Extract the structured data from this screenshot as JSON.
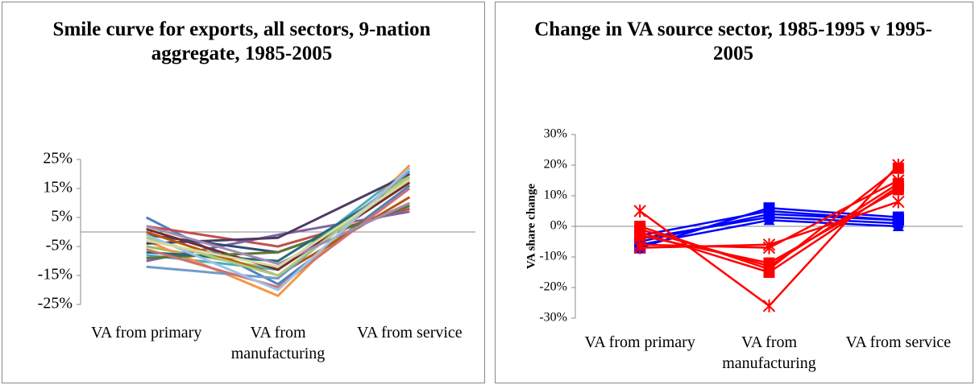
{
  "chart_data": [
    {
      "type": "line",
      "title": "Smile curve for exports, all sectors, 9-nation aggregate, 1985-2005",
      "categories": [
        "VA from primary",
        "VA from manufacturing",
        "VA from service"
      ],
      "ylim": [
        -25,
        25
      ],
      "yticks": [
        {
          "value": -25,
          "label": "-25%"
        },
        {
          "value": -15,
          "label": "-15%"
        },
        {
          "value": -5,
          "label": "-5%"
        },
        {
          "value": 5,
          "label": "5%"
        },
        {
          "value": 15,
          "label": "15%"
        },
        {
          "value": 25,
          "label": "25%"
        }
      ],
      "series": [
        {
          "color": "#4F81BD",
          "values": [
            5,
            -18,
            16
          ]
        },
        {
          "color": "#C0504D",
          "values": [
            2,
            -5,
            8
          ]
        },
        {
          "color": "#9BBB59",
          "values": [
            -5,
            -13,
            20
          ]
        },
        {
          "color": "#8064A2",
          "values": [
            -10,
            -1,
            7
          ]
        },
        {
          "color": "#4BACC6",
          "values": [
            -8,
            -13,
            22
          ]
        },
        {
          "color": "#F79646",
          "values": [
            -3,
            -22,
            23
          ]
        },
        {
          "color": "#2C4D75",
          "values": [
            -1,
            -7,
            9
          ]
        },
        {
          "color": "#772C2A",
          "values": [
            1,
            -13,
            17
          ]
        },
        {
          "color": "#5F7530",
          "values": [
            -9,
            -7,
            9
          ]
        },
        {
          "color": "#4D3B62",
          "values": [
            -4,
            -2,
            20
          ]
        },
        {
          "color": "#276A7C",
          "values": [
            -7,
            -10,
            18
          ]
        },
        {
          "color": "#B65708",
          "values": [
            0,
            -15,
            12
          ]
        },
        {
          "color": "#729ACA",
          "values": [
            -12,
            -16,
            21
          ]
        },
        {
          "color": "#CD7371",
          "values": [
            -6,
            -19,
            15
          ]
        },
        {
          "color": "#AFC97A",
          "values": [
            -2,
            -15,
            19
          ]
        },
        {
          "color": "#A18CB5",
          "values": [
            2,
            -11,
            10
          ]
        },
        {
          "color": "#9DC3E6",
          "values": [
            -1,
            -20,
            22
          ]
        },
        {
          "color": "#D9D9A0",
          "values": [
            -3,
            -12,
            18
          ]
        }
      ]
    },
    {
      "type": "line",
      "title": "Change in VA source sector, 1985-1995 v 1995-2005",
      "categories": [
        "VA from primary",
        "VA from manufacturing",
        "VA from service"
      ],
      "ylabel": "VA share change",
      "ylim": [
        -30,
        30
      ],
      "yticks": [
        {
          "value": -30,
          "label": "-30%"
        },
        {
          "value": -20,
          "label": "-20%"
        },
        {
          "value": -10,
          "label": "-10%"
        },
        {
          "value": 0,
          "label": "0%"
        },
        {
          "value": 10,
          "label": "10%"
        },
        {
          "value": 20,
          "label": "20%"
        },
        {
          "value": 30,
          "label": "30%"
        }
      ],
      "series": [
        {
          "color": "#0000FF",
          "marker": "square",
          "values": [
            -7,
            6,
            3
          ]
        },
        {
          "color": "#0000FF",
          "marker": "square",
          "values": [
            -5,
            4,
            2
          ]
        },
        {
          "color": "#0000FF",
          "marker": "triangle",
          "values": [
            -4,
            3,
            1
          ]
        },
        {
          "color": "#0000FF",
          "marker": "triangle",
          "values": [
            -6,
            2,
            0
          ]
        },
        {
          "color": "#0000FF",
          "marker": "square",
          "values": [
            -3,
            5,
            2
          ]
        },
        {
          "color": "#FF0000",
          "marker": "square",
          "values": [
            0,
            -14,
            19
          ]
        },
        {
          "color": "#FF0000",
          "marker": "square",
          "values": [
            -1,
            -13,
            14
          ]
        },
        {
          "color": "#FF0000",
          "marker": "square",
          "values": [
            -2,
            -15,
            13
          ]
        },
        {
          "color": "#FF0000",
          "marker": "star",
          "values": [
            5,
            -26,
            20
          ]
        },
        {
          "color": "#FF0000",
          "marker": "star",
          "values": [
            -7,
            -6,
            8
          ]
        },
        {
          "color": "#FF0000",
          "marker": "star",
          "values": [
            -6,
            -7,
            15
          ]
        },
        {
          "color": "#FF0000",
          "marker": "square",
          "values": [
            -3,
            -12,
            12
          ]
        }
      ]
    }
  ]
}
